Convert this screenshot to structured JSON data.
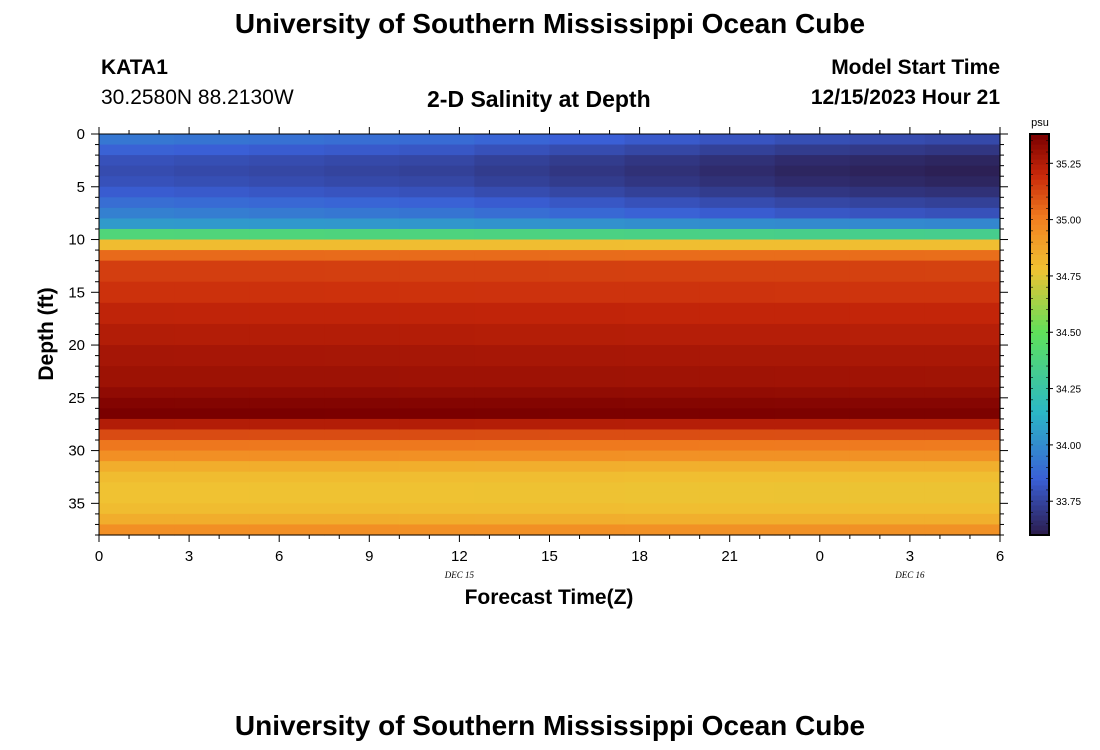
{
  "header": {
    "title": "University of Southern Mississippi Ocean Cube",
    "station": "KATA1",
    "location": "30.2580N  88.2130W",
    "chart_title": "2-D Salinity at Depth",
    "model_start_label": "Model Start Time",
    "model_start_value": "12/15/2023 Hour 21"
  },
  "footer": {
    "title": "University of Southern Mississippi Ocean Cube"
  },
  "colors": {
    "lowest": "#2b1b4a",
    "low": "#3a5fd6",
    "mid_low": "#2bb8c6",
    "mid": "#5fe05a",
    "mid_high": "#f0c232",
    "high": "#f28020",
    "higher": "#c8280a",
    "highest": "#7a0000"
  },
  "chart_data": {
    "type": "heatmap",
    "title": "2-D Salinity at Depth",
    "xlabel": "Forecast Time(Z)",
    "ylabel": "Depth (ft)",
    "x_ticks": [
      "0",
      "3",
      "6",
      "9",
      "12",
      "15",
      "18",
      "21",
      "0",
      "3",
      "6"
    ],
    "date_labels": [
      {
        "text": "DEC 15",
        "hour": 12
      },
      {
        "text": "DEC 16",
        "hour": 27
      }
    ],
    "x_range_hours": [
      0,
      30
    ],
    "y_ticks": [
      "0",
      "5",
      "10",
      "15",
      "20",
      "25",
      "30",
      "35"
    ],
    "y_range_ft": [
      0,
      38
    ],
    "colorbar": {
      "unit": "psu",
      "range": [
        33.6,
        35.38
      ],
      "ticks": [
        "35.25",
        "35.00",
        "34.75",
        "34.50",
        "34.25",
        "34.00",
        "33.75"
      ],
      "tick_values": [
        35.25,
        35.0,
        34.75,
        34.5,
        34.25,
        34.0,
        33.75
      ]
    },
    "depth_levels_ft": [
      0,
      1,
      2,
      3,
      4,
      5,
      6,
      7,
      8,
      9,
      10,
      11,
      12,
      14,
      16,
      18,
      20,
      22,
      24,
      25,
      26,
      27,
      28,
      29,
      30,
      31,
      32,
      33,
      34,
      35,
      36,
      37
    ],
    "depth_profile_psu": [
      33.93,
      33.86,
      33.8,
      33.78,
      33.8,
      33.84,
      33.9,
      33.96,
      34.05,
      34.4,
      34.8,
      35.05,
      35.15,
      35.18,
      35.22,
      35.25,
      35.28,
      35.3,
      35.33,
      35.36,
      35.38,
      35.25,
      35.12,
      35.02,
      34.95,
      34.85,
      34.8,
      34.78,
      34.78,
      34.8,
      34.85,
      34.95
    ],
    "time_anomaly_upper_psu": [
      0.0,
      -0.01,
      -0.02,
      -0.03,
      -0.04,
      -0.06,
      -0.08,
      -0.1,
      -0.12,
      -0.14,
      -0.15,
      -0.16
    ]
  }
}
